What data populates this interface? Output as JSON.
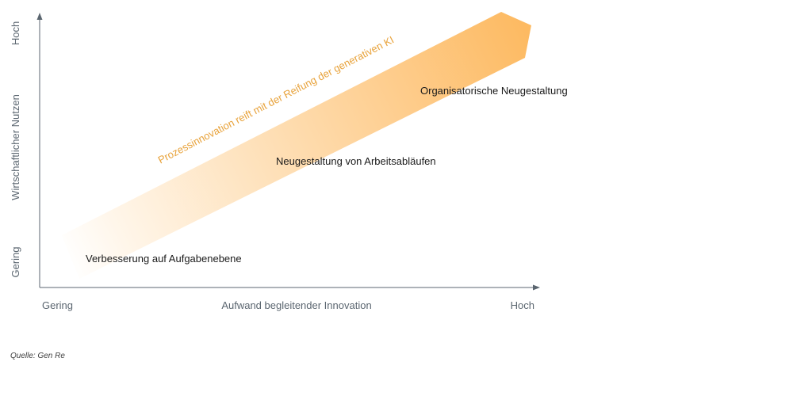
{
  "diagram": {
    "y_axis": {
      "label": "Wirtschaftlicher Nutzen",
      "high": "Hoch",
      "low": "Gering"
    },
    "x_axis": {
      "label": "Aufwand begleitender Innovation",
      "low": "Gering",
      "high": "Hoch"
    },
    "arrow_label": "Prozessinnovation reift mit der Reifung der generativen KI",
    "stages": [
      "Verbesserung auf Aufgabenebene",
      "Neugestaltung von Arbeitsabläufen",
      "Organisatorische Neugestaltung"
    ],
    "colors": {
      "arrow_start": "#fff6ea",
      "arrow_end": "#fdba62",
      "arrow_label": "#e8a23a",
      "axis": "#5b6670",
      "text": "#1a1a1a"
    }
  },
  "source": "Quelle: Gen Re"
}
